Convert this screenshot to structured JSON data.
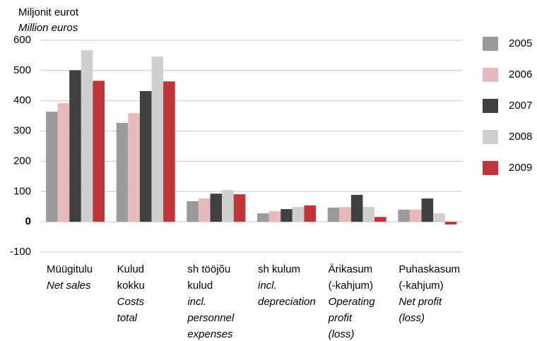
{
  "chart_data": {
    "type": "bar",
    "y_label": [
      "Miljonit eurot",
      "Million euros"
    ],
    "categories": [
      [
        "Müügitulu"
      ],
      [
        "Kulud",
        "kokku"
      ],
      [
        "sh tööjõu",
        "kulud"
      ],
      [
        "sh kulum"
      ],
      [
        "Ärikasum",
        "(-kahjum)"
      ],
      [
        "Puhaskasum",
        "(-kahjum)"
      ]
    ],
    "categories_en": [
      [
        "Net sales"
      ],
      [
        "Costs",
        "total"
      ],
      [
        "incl.",
        "personnel",
        "expenses"
      ],
      [
        "incl.",
        "depreciation"
      ],
      [
        "Operating",
        "profit",
        "(loss)"
      ],
      [
        "Net profit",
        "(loss)"
      ]
    ],
    "series": [
      {
        "name": "2005",
        "color": "#9b9b9b",
        "values": [
          364,
          327,
          68,
          28,
          47,
          40
        ]
      },
      {
        "name": "2006",
        "color": "#e8b9bd",
        "values": [
          392,
          359,
          77,
          35,
          49,
          40
        ]
      },
      {
        "name": "2007",
        "color": "#404040",
        "values": [
          501,
          432,
          93,
          42,
          89,
          77
        ]
      },
      {
        "name": "2008",
        "color": "#cfcfcf",
        "values": [
          567,
          546,
          105,
          49,
          49,
          28
        ]
      },
      {
        "name": "2009",
        "color": "#c0353a",
        "values": [
          466,
          464,
          91,
          54,
          16,
          -9
        ]
      }
    ],
    "ylim": [
      -100,
      600
    ],
    "yticks": [
      -100,
      0,
      100,
      200,
      300,
      400,
      500,
      600
    ],
    "grid": true,
    "legend": "right"
  }
}
